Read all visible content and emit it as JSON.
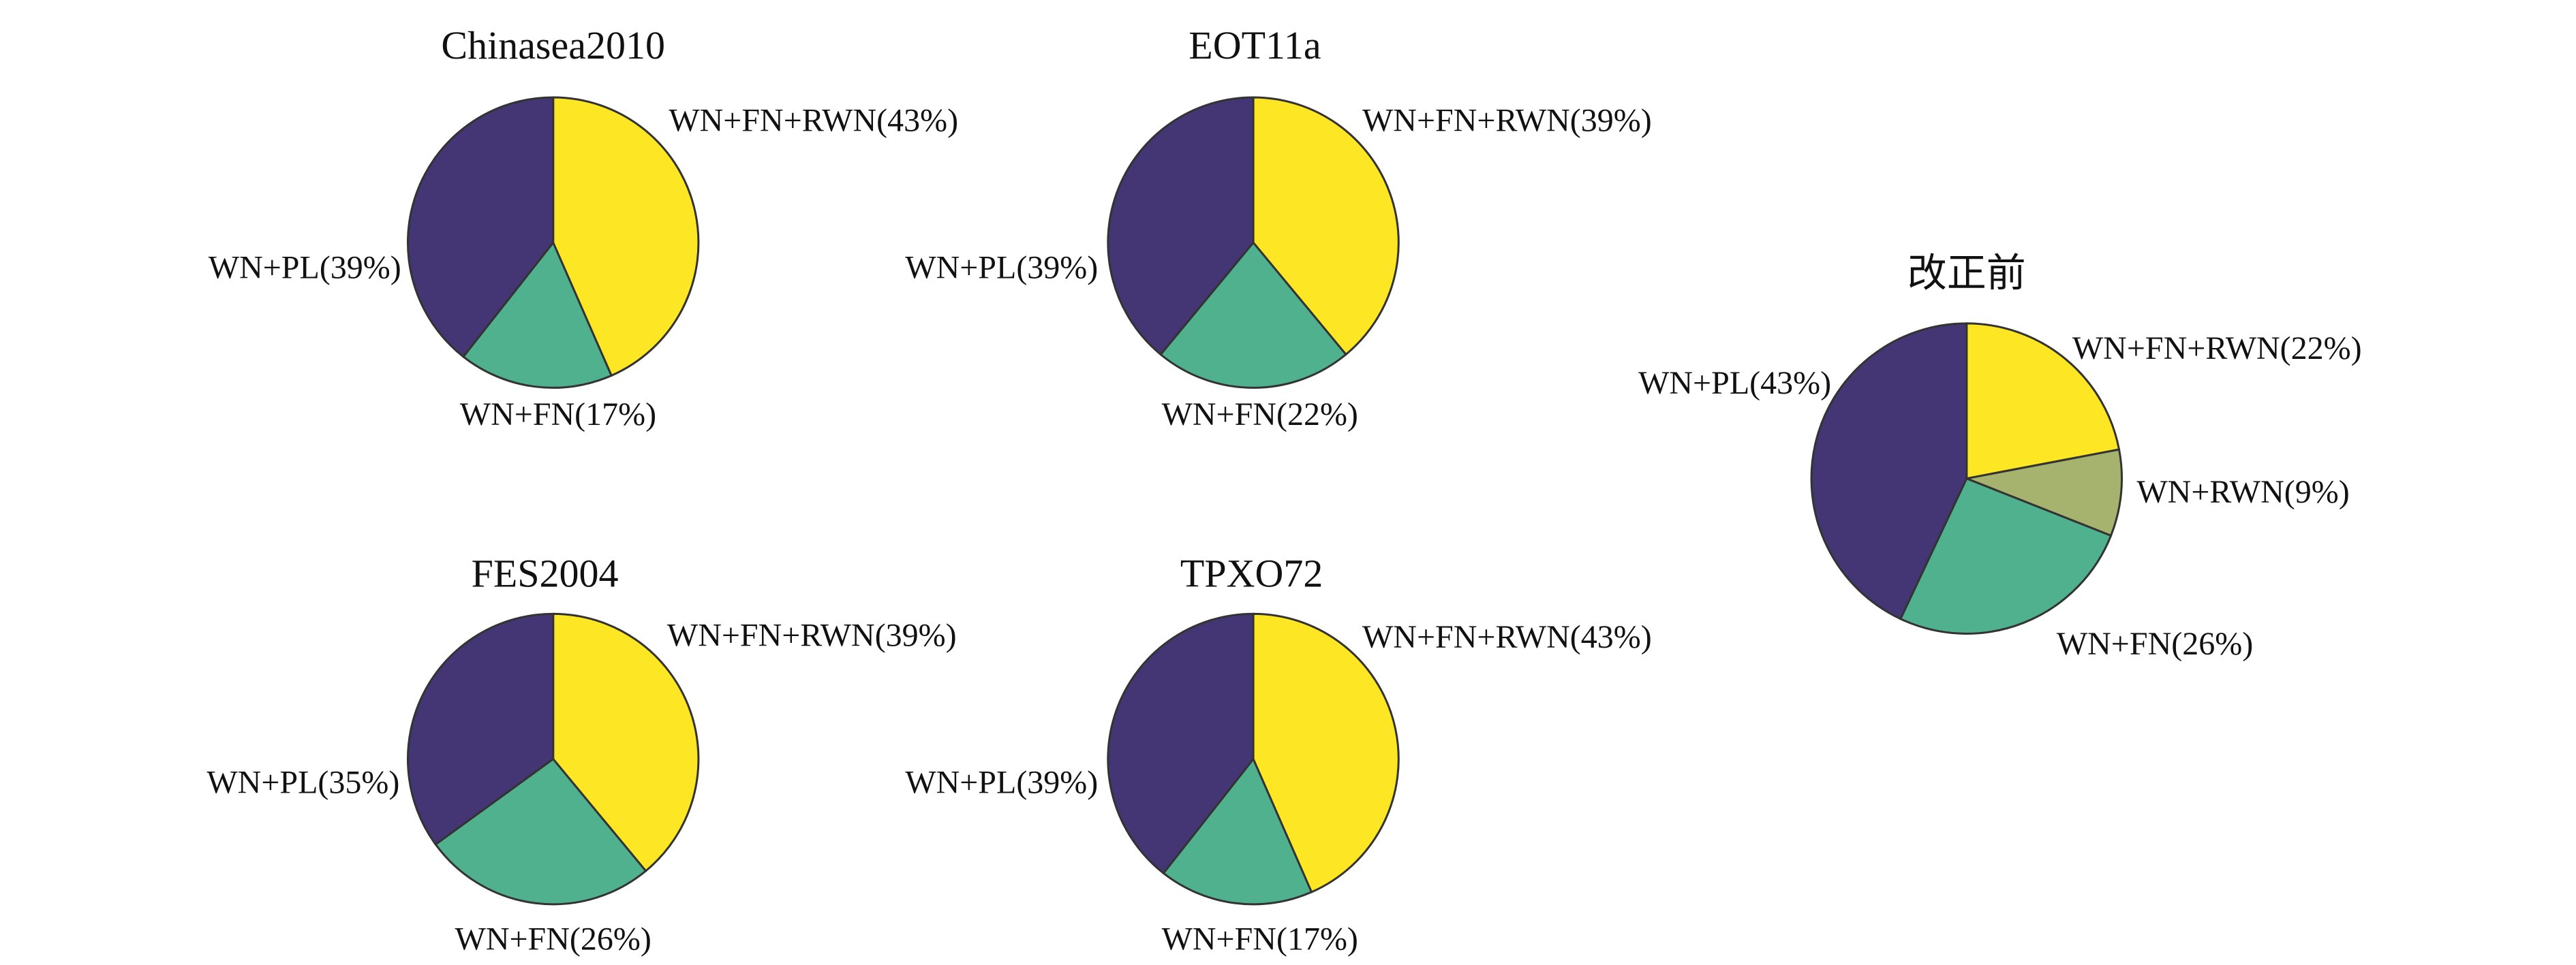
{
  "chart_data": [
    {
      "type": "pie",
      "title": "Chinasea2010",
      "values": [
        43,
        17,
        39
      ],
      "value_labels": [
        "WN+FN+RWN(43%)",
        "WN+FN(17%)",
        "WN+PL(39%)"
      ],
      "colors": [
        "#fde725",
        "#50b18f",
        "#443675"
      ]
    },
    {
      "type": "pie",
      "title": "EOT11a",
      "values": [
        39,
        22,
        39
      ],
      "value_labels": [
        "WN+FN+RWN(39%)",
        "WN+FN(22%)",
        "WN+PL(39%)"
      ],
      "colors": [
        "#fde725",
        "#50b18f",
        "#443675"
      ]
    },
    {
      "type": "pie",
      "title": "FES2004",
      "values": [
        39,
        26,
        35
      ],
      "value_labels": [
        "WN+FN+RWN(39%)",
        "WN+FN(26%)",
        "WN+PL(35%)"
      ],
      "colors": [
        "#fde725",
        "#50b18f",
        "#443675"
      ]
    },
    {
      "type": "pie",
      "title": "TPXO72",
      "values": [
        43,
        17,
        39
      ],
      "value_labels": [
        "WN+FN+RWN(43%)",
        "WN+FN(17%)",
        "WN+PL(39%)"
      ],
      "colors": [
        "#fde725",
        "#50b18f",
        "#443675"
      ]
    },
    {
      "type": "pie",
      "title": "改正前",
      "values": [
        22,
        9,
        26,
        43
      ],
      "value_labels": [
        "WN+FN+RWN(22%)",
        "WN+RWN(9%)",
        "WN+FN(26%)",
        "WN+PL(43%)"
      ],
      "colors": [
        "#fde725",
        "#a5b36f",
        "#50b18f",
        "#443675"
      ]
    }
  ]
}
